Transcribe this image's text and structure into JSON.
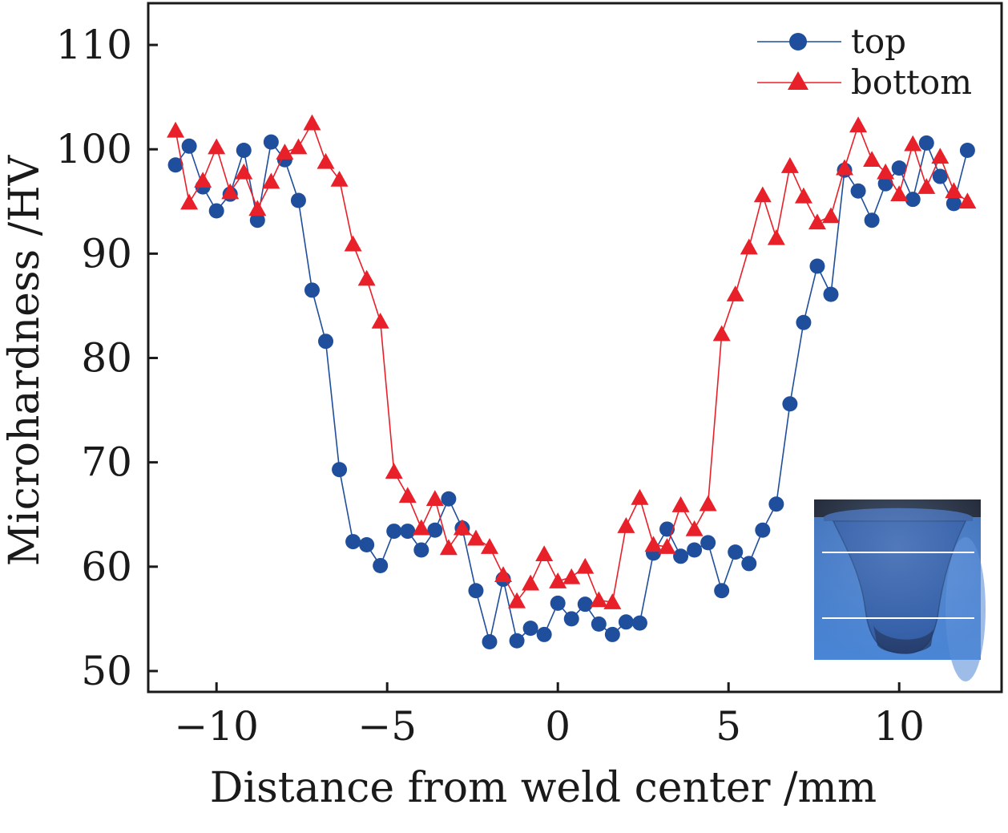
{
  "chart_data": {
    "type": "line",
    "xlabel": "Distance from weld center /mm",
    "ylabel": "Microhardness /HV",
    "xlim": [
      -12,
      13
    ],
    "ylim": [
      48,
      114
    ],
    "xticks": [
      -10,
      -5,
      0,
      5,
      10
    ],
    "xtick_labels": [
      "−10",
      "−5",
      "0",
      "5",
      "10"
    ],
    "yticks": [
      50,
      60,
      70,
      80,
      90,
      100,
      110
    ],
    "ytick_labels": [
      "50",
      "60",
      "70",
      "80",
      "90",
      "100",
      "110"
    ],
    "grid": false,
    "legend_position": "top-right",
    "series": [
      {
        "name": "top",
        "marker": "circle",
        "color": "#1f4e9c",
        "x": [
          -11.2,
          -10.8,
          -10.4,
          -10.0,
          -9.6,
          -9.2,
          -8.8,
          -8.4,
          -8.0,
          -7.6,
          -7.2,
          -6.8,
          -6.4,
          -6.0,
          -5.6,
          -5.2,
          -4.8,
          -4.4,
          -4.0,
          -3.6,
          -3.2,
          -2.8,
          -2.4,
          -2.0,
          -1.6,
          -1.2,
          -0.8,
          -0.4,
          0.0,
          0.4,
          0.8,
          1.2,
          1.6,
          2.0,
          2.4,
          2.8,
          3.2,
          3.6,
          4.0,
          4.4,
          4.8,
          5.2,
          5.6,
          6.0,
          6.4,
          6.8,
          7.2,
          7.6,
          8.0,
          8.4,
          8.8,
          9.2,
          9.6,
          10.0,
          10.4,
          10.8,
          11.2,
          11.6,
          12.0
        ],
        "y": [
          98.5,
          100.3,
          96.4,
          94.1,
          95.7,
          99.9,
          93.2,
          100.7,
          99.0,
          95.1,
          86.5,
          81.6,
          69.3,
          62.4,
          62.1,
          60.1,
          63.4,
          63.4,
          61.6,
          63.5,
          66.5,
          63.7,
          57.7,
          52.8,
          58.8,
          52.9,
          54.1,
          53.5,
          56.5,
          55.0,
          56.4,
          54.5,
          53.5,
          54.7,
          54.6,
          61.3,
          63.6,
          61.0,
          61.6,
          62.3,
          57.7,
          61.4,
          60.3,
          63.5,
          66.0,
          75.6,
          83.4,
          88.8,
          86.1,
          98.0,
          96.0,
          93.2,
          96.7,
          98.2,
          95.2,
          100.6,
          97.4,
          94.8,
          99.9
        ]
      },
      {
        "name": "bottom",
        "marker": "triangle",
        "color": "#e8202a",
        "x": [
          -11.2,
          -10.8,
          -10.4,
          -10.0,
          -9.6,
          -9.2,
          -8.8,
          -8.4,
          -8.0,
          -7.6,
          -7.2,
          -6.8,
          -6.4,
          -6.0,
          -5.6,
          -5.2,
          -4.8,
          -4.4,
          -4.0,
          -3.6,
          -3.2,
          -2.8,
          -2.4,
          -2.0,
          -1.6,
          -1.2,
          -0.8,
          -0.4,
          0.0,
          0.4,
          0.8,
          1.2,
          1.6,
          2.0,
          2.4,
          2.8,
          3.2,
          3.6,
          4.0,
          4.4,
          4.8,
          5.2,
          5.6,
          6.0,
          6.4,
          6.8,
          7.2,
          7.6,
          8.0,
          8.4,
          8.8,
          9.2,
          9.6,
          10.0,
          10.4,
          10.8,
          11.2,
          11.6,
          12.0
        ],
        "y": [
          101.8,
          94.9,
          97.0,
          100.2,
          95.9,
          97.8,
          94.3,
          96.9,
          99.7,
          100.2,
          102.5,
          98.8,
          97.1,
          90.9,
          87.6,
          83.5,
          69.1,
          66.8,
          63.7,
          66.5,
          61.8,
          63.7,
          62.7,
          61.9,
          59.2,
          56.7,
          58.4,
          61.2,
          58.6,
          59.0,
          60.0,
          56.8,
          56.6,
          63.9,
          66.6,
          62.1,
          61.9,
          65.9,
          63.6,
          66.0,
          82.3,
          86.1,
          90.6,
          95.6,
          91.5,
          98.4,
          95.5,
          93.0,
          93.6,
          98.2,
          102.3,
          99.0,
          97.8,
          95.7,
          100.5,
          96.4,
          99.3,
          96.0,
          95.0
        ]
      }
    ]
  }
}
